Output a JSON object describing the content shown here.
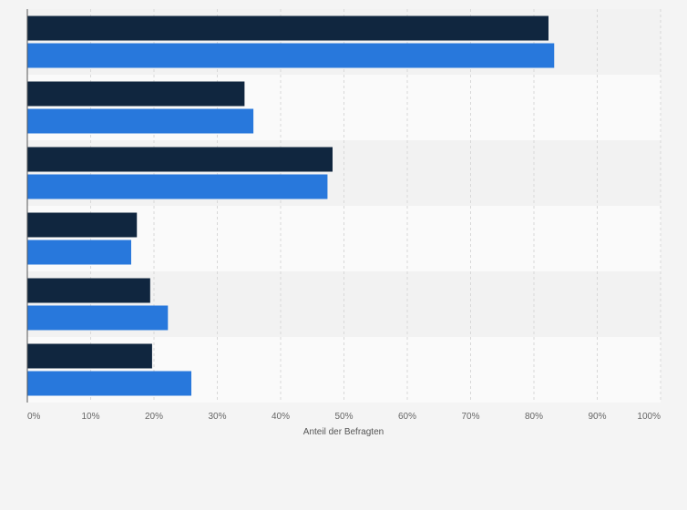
{
  "chart_data": {
    "type": "bar",
    "orientation": "horizontal",
    "categories": [
      "",
      "",
      "",
      "",
      "",
      ""
    ],
    "series": [
      {
        "name": "",
        "color": "#10263f",
        "values": [
          82.3,
          34.3,
          48.2,
          17.3,
          19.4,
          19.7
        ]
      },
      {
        "name": "",
        "color": "#2878dc",
        "values": [
          83.2,
          35.7,
          47.4,
          16.4,
          22.2,
          25.9
        ]
      }
    ],
    "xlim": [
      0,
      100
    ],
    "xticks": [
      0,
      10,
      20,
      30,
      40,
      50,
      60,
      70,
      80,
      90,
      100
    ],
    "tick_suffix": "%",
    "xlabel": "Anteil der Befragten",
    "ylabel": "",
    "title": "",
    "grid": true,
    "legend": "none"
  },
  "colors": {
    "band_light": "#fafafa",
    "band_dark": "#f2f2f2",
    "grid": "#d8d8d8",
    "axis": "#555555"
  }
}
